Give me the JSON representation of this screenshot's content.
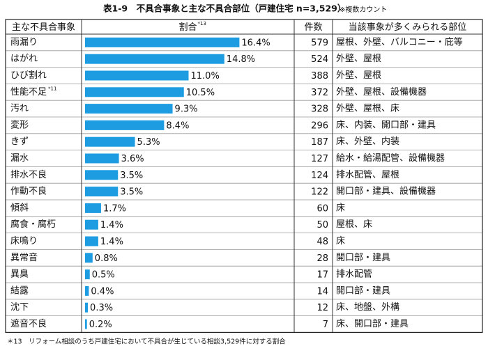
{
  "header": {
    "title": "表1-9　不具合事象と主な不具合部位（戸建住宅 n=3,529）",
    "note": "※複数カウント"
  },
  "table": {
    "columns": [
      "主な不具合事象",
      "割合",
      "件数",
      "当該事象が多くみられる部位"
    ],
    "column_note": "*13",
    "rows": [
      {
        "event": "雨漏り",
        "percent": 16.4,
        "percent_label": "16.4%",
        "count": 579,
        "parts": "屋根、外壁、バルコニー・庇等"
      },
      {
        "event": "はがれ",
        "percent": 14.8,
        "percent_label": "14.8%",
        "count": 524,
        "parts": "外壁、屋根"
      },
      {
        "event": "ひび割れ",
        "percent": 11.0,
        "percent_label": "11.0%",
        "count": 388,
        "parts": "外壁、屋根"
      },
      {
        "event": "性能不足",
        "event_note": "*11",
        "percent": 10.5,
        "percent_label": "10.5%",
        "count": 372,
        "parts": "外壁、屋根、設備機器"
      },
      {
        "event": "汚れ",
        "percent": 9.3,
        "percent_label": "9.3%",
        "count": 328,
        "parts": "外壁、屋根、床"
      },
      {
        "event": "変形",
        "percent": 8.4,
        "percent_label": "8.4%",
        "count": 296,
        "parts": "床、内装、開口部・建具"
      },
      {
        "event": "きず",
        "percent": 5.3,
        "percent_label": "5.3%",
        "count": 187,
        "parts": "床、外壁、内装"
      },
      {
        "event": "漏水",
        "percent": 3.6,
        "percent_label": "3.6%",
        "count": 127,
        "parts": "給水・給湯配管、設備機器"
      },
      {
        "event": "排水不良",
        "percent": 3.5,
        "percent_label": "3.5%",
        "count": 124,
        "parts": "排水配管、屋根"
      },
      {
        "event": "作動不良",
        "percent": 3.5,
        "percent_label": "3.5%",
        "count": 122,
        "parts": "開口部・建具、設備機器"
      },
      {
        "event": "傾斜",
        "percent": 1.7,
        "percent_label": "1.7%",
        "count": 60,
        "parts": "床"
      },
      {
        "event": "腐食・腐朽",
        "percent": 1.4,
        "percent_label": "1.4%",
        "count": 50,
        "parts": "屋根、床"
      },
      {
        "event": "床鳴り",
        "percent": 1.4,
        "percent_label": "1.4%",
        "count": 48,
        "parts": "床"
      },
      {
        "event": "異常音",
        "percent": 0.8,
        "percent_label": "0.8%",
        "count": 28,
        "parts": "開口部・建具"
      },
      {
        "event": "異臭",
        "percent": 0.5,
        "percent_label": "0.5%",
        "count": 17,
        "parts": "排水配管"
      },
      {
        "event": "結露",
        "percent": 0.4,
        "percent_label": "0.4%",
        "count": 14,
        "parts": "開口部・建具"
      },
      {
        "event": "沈下",
        "percent": 0.3,
        "percent_label": "0.3%",
        "count": 12,
        "parts": "床、地盤、外構"
      },
      {
        "event": "遮音不良",
        "percent": 0.2,
        "percent_label": "0.2%",
        "count": 7,
        "parts": "床、開口部・建具"
      }
    ]
  },
  "footnote": "＊13　リフォーム相談のうち戸建住宅において不具合が生じている相談3,529件に対する割合"
}
